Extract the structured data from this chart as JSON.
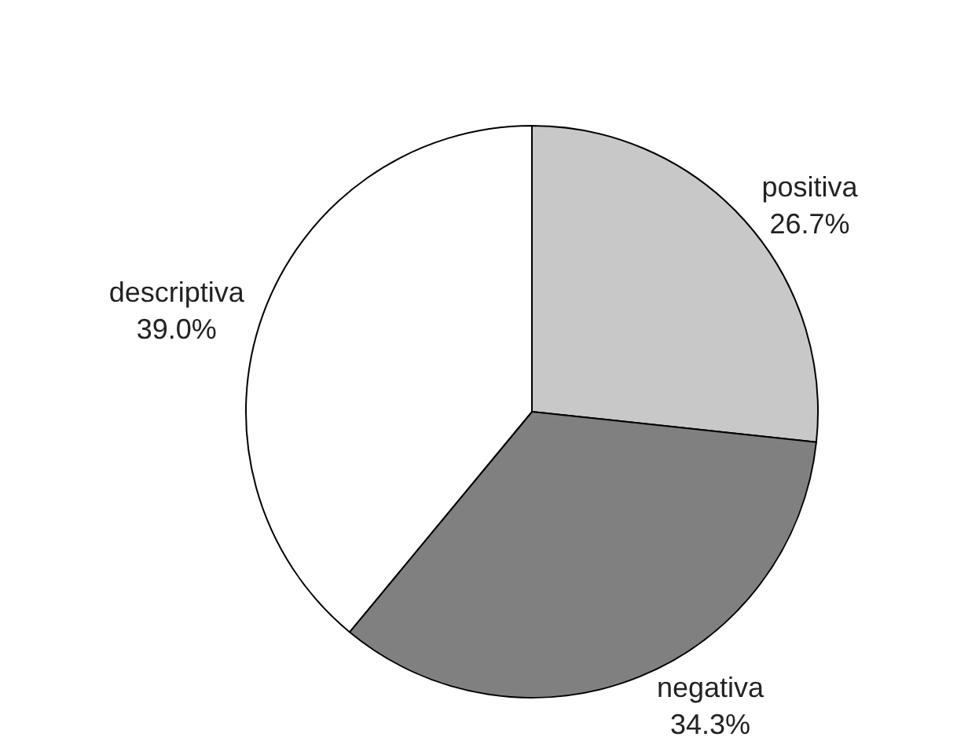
{
  "chart_data": {
    "type": "pie",
    "categories": [
      "positiva",
      "negativa",
      "descriptiva"
    ],
    "values": [
      26.7,
      34.3,
      39.0
    ],
    "value_labels": [
      "26.7%",
      "34.3%",
      "39.0%"
    ],
    "colors": [
      "#c8c8c8",
      "#808080",
      "#ffffff"
    ],
    "legend": false
  }
}
